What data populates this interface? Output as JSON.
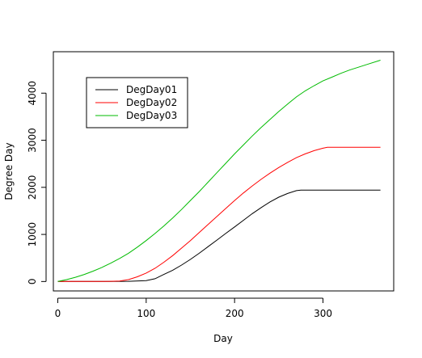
{
  "chart_data": {
    "type": "line",
    "title": "",
    "xlabel": "Day",
    "ylabel": "Degree Day",
    "xlim": [
      -5,
      380
    ],
    "ylim": [
      -200,
      4880
    ],
    "xticks": [
      0,
      100,
      200,
      300
    ],
    "yticks": [
      0,
      1000,
      2000,
      3000,
      4000
    ],
    "grid": false,
    "legend_position": "top-left",
    "series": [
      {
        "name": "DegDay01",
        "color": "#000000",
        "points": [
          [
            0,
            0
          ],
          [
            60,
            0
          ],
          [
            80,
            5
          ],
          [
            100,
            20
          ],
          [
            110,
            60
          ],
          [
            120,
            150
          ],
          [
            130,
            240
          ],
          [
            140,
            350
          ],
          [
            150,
            470
          ],
          [
            160,
            600
          ],
          [
            170,
            740
          ],
          [
            180,
            880
          ],
          [
            190,
            1020
          ],
          [
            200,
            1160
          ],
          [
            210,
            1300
          ],
          [
            220,
            1440
          ],
          [
            230,
            1570
          ],
          [
            240,
            1690
          ],
          [
            250,
            1790
          ],
          [
            260,
            1870
          ],
          [
            270,
            1930
          ],
          [
            275,
            1940
          ],
          [
            300,
            1940
          ],
          [
            330,
            1940
          ],
          [
            365,
            1940
          ]
        ]
      },
      {
        "name": "DegDay02",
        "color": "#ff0000",
        "points": [
          [
            0,
            0
          ],
          [
            50,
            0
          ],
          [
            60,
            5
          ],
          [
            70,
            10
          ],
          [
            80,
            40
          ],
          [
            90,
            100
          ],
          [
            100,
            180
          ],
          [
            110,
            280
          ],
          [
            120,
            410
          ],
          [
            130,
            550
          ],
          [
            140,
            710
          ],
          [
            150,
            870
          ],
          [
            160,
            1040
          ],
          [
            170,
            1210
          ],
          [
            180,
            1380
          ],
          [
            190,
            1550
          ],
          [
            200,
            1720
          ],
          [
            210,
            1880
          ],
          [
            220,
            2030
          ],
          [
            230,
            2170
          ],
          [
            240,
            2300
          ],
          [
            250,
            2420
          ],
          [
            260,
            2530
          ],
          [
            270,
            2630
          ],
          [
            280,
            2710
          ],
          [
            290,
            2780
          ],
          [
            300,
            2830
          ],
          [
            305,
            2850
          ],
          [
            330,
            2850
          ],
          [
            365,
            2850
          ]
        ]
      },
      {
        "name": "DegDay03",
        "color": "#00bb00",
        "points": [
          [
            0,
            0
          ],
          [
            10,
            40
          ],
          [
            20,
            90
          ],
          [
            30,
            150
          ],
          [
            40,
            220
          ],
          [
            50,
            300
          ],
          [
            60,
            390
          ],
          [
            70,
            490
          ],
          [
            80,
            600
          ],
          [
            90,
            730
          ],
          [
            100,
            870
          ],
          [
            110,
            1020
          ],
          [
            120,
            1180
          ],
          [
            130,
            1350
          ],
          [
            140,
            1530
          ],
          [
            150,
            1720
          ],
          [
            160,
            1910
          ],
          [
            170,
            2110
          ],
          [
            180,
            2310
          ],
          [
            190,
            2510
          ],
          [
            200,
            2710
          ],
          [
            210,
            2900
          ],
          [
            220,
            3090
          ],
          [
            230,
            3270
          ],
          [
            240,
            3440
          ],
          [
            250,
            3610
          ],
          [
            260,
            3770
          ],
          [
            270,
            3920
          ],
          [
            280,
            4050
          ],
          [
            290,
            4160
          ],
          [
            300,
            4260
          ],
          [
            310,
            4340
          ],
          [
            320,
            4420
          ],
          [
            330,
            4490
          ],
          [
            340,
            4550
          ],
          [
            350,
            4610
          ],
          [
            365,
            4700
          ]
        ]
      }
    ]
  }
}
